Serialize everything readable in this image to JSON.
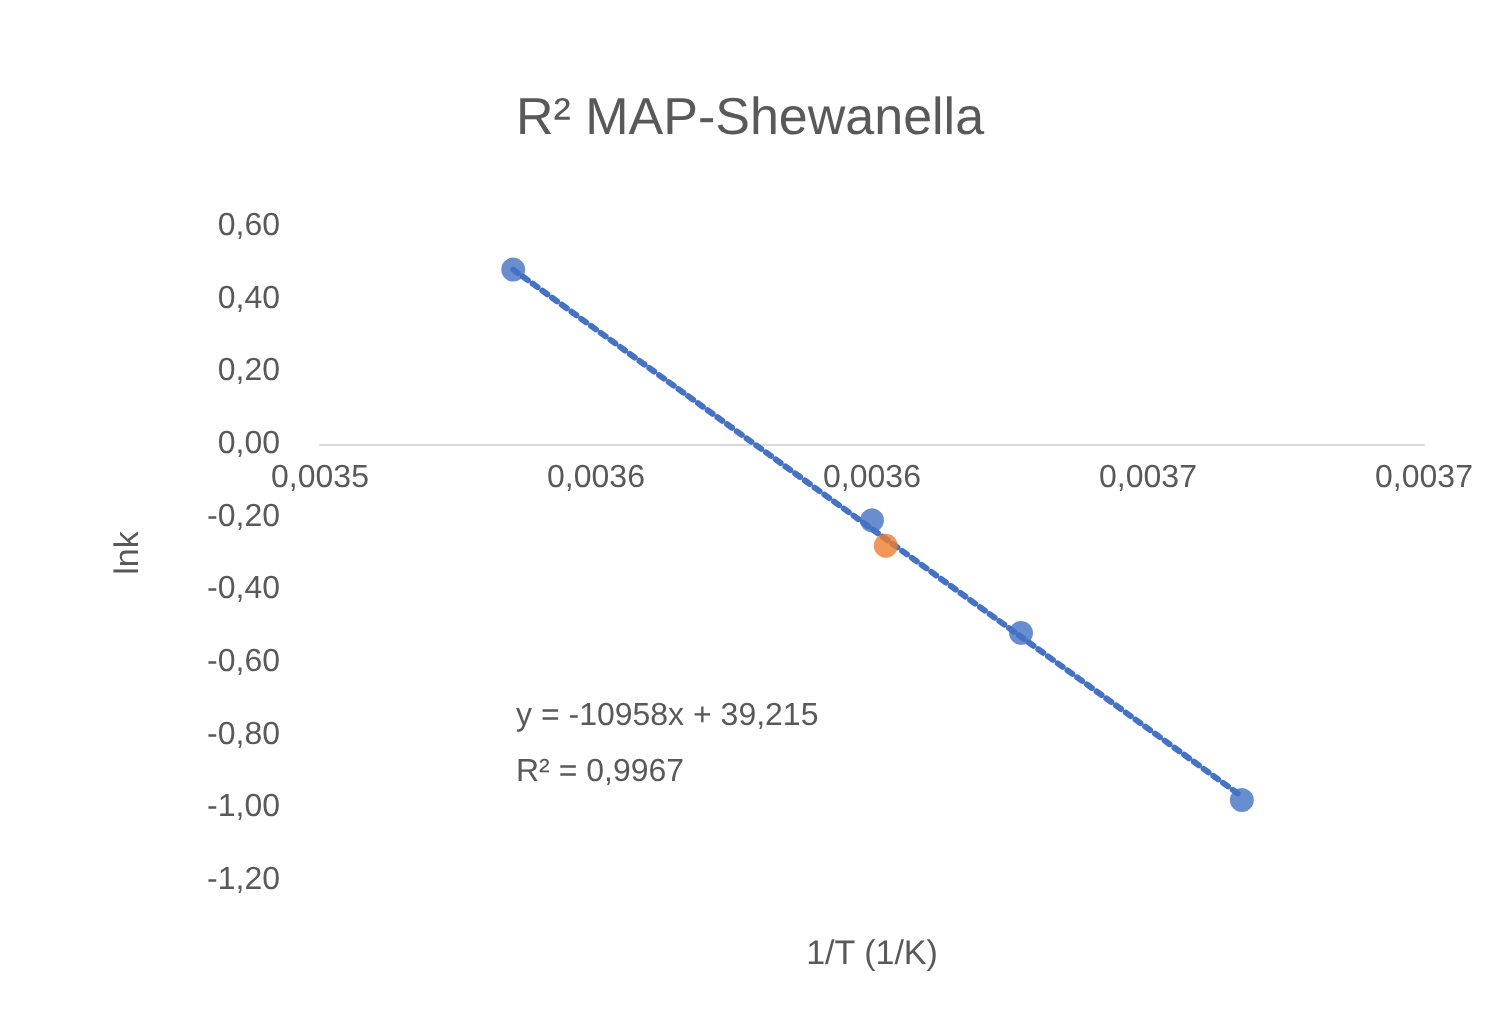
{
  "chart_data": {
    "type": "scatter",
    "title": "R² MAP-Shewanella",
    "xlabel": "1/T (1/K)",
    "ylabel": "lnk",
    "annotations": [
      "y = -10958x + 39,215",
      "R² = 0,9967"
    ],
    "series": [
      {
        "type": "scatter",
        "color": "#4472c4",
        "x": [
          0.003535,
          0.0036,
          0.003627,
          0.003667
        ],
        "values": [
          0.48,
          -0.21,
          -0.52,
          -0.98
        ],
        "marker": "circle"
      },
      {
        "type": "scatter",
        "color": "#ed7d31",
        "x": [
          0.0036025
        ],
        "values": [
          -0.28
        ],
        "marker": "circle"
      },
      {
        "type": "line",
        "color": "#4472c4",
        "x": [
          0.003535,
          0.003667
        ],
        "values": [
          0.48,
          -0.97
        ],
        "marker": "none",
        "line_style": "dotted"
      }
    ],
    "xlim": [
      0.0035,
      0.0037
    ],
    "xticks": [
      {
        "value": 0.0035,
        "label": "0,0035"
      },
      {
        "value": 0.00355,
        "label": "0,0036"
      },
      {
        "value": 0.0036,
        "label": "0,0036"
      },
      {
        "value": 0.00365,
        "label": "0,0037"
      },
      {
        "value": 0.0037,
        "label": "0,0037"
      }
    ],
    "ylim": [
      -1.2,
      0.6
    ],
    "yticks": [
      {
        "value": -1.2,
        "label": "-1,20"
      },
      {
        "value": -1.0,
        "label": "-1,00"
      },
      {
        "value": -0.8,
        "label": "-0,80"
      },
      {
        "value": -0.6,
        "label": "-0,60"
      },
      {
        "value": -0.4,
        "label": "-0,40"
      },
      {
        "value": -0.2,
        "label": "-0,20"
      },
      {
        "value": 0,
        "label": "0,00"
      },
      {
        "value": 0.2,
        "label": "0,20"
      },
      {
        "value": 0.4,
        "label": "0,40"
      },
      {
        "value": 0.6,
        "label": "0,60"
      }
    ],
    "grid": false,
    "legend": false
  }
}
